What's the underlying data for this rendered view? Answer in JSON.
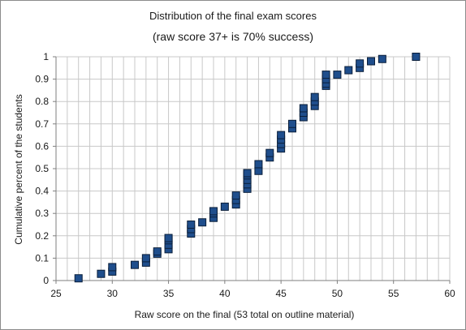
{
  "chart_data": {
    "type": "scatter",
    "title": "Distribution of the final exam scores",
    "subtitle": "(raw score 37+ is 70% success)",
    "xlabel": "Raw score on the final (53 total on outline material)",
    "ylabel": "Cumulative percent of the students",
    "xlim": [
      25,
      60
    ],
    "ylim": [
      0,
      1
    ],
    "xticks": [
      25,
      30,
      35,
      40,
      45,
      50,
      55,
      60
    ],
    "yticks": [
      0,
      0.1,
      0.2,
      0.3,
      0.4,
      0.5,
      0.6,
      0.7,
      0.8,
      0.9,
      1
    ],
    "grid": true,
    "legend": "none",
    "marker_color": "#1f4e8c",
    "marker_edge": "#0b1f3a",
    "grid_color": "#c8c8c8",
    "points": [
      {
        "x": 27,
        "y": 0.01
      },
      {
        "x": 29,
        "y": 0.03
      },
      {
        "x": 30,
        "y": 0.04
      },
      {
        "x": 30,
        "y": 0.06
      },
      {
        "x": 32,
        "y": 0.07
      },
      {
        "x": 33,
        "y": 0.08
      },
      {
        "x": 33,
        "y": 0.1
      },
      {
        "x": 34,
        "y": 0.12
      },
      {
        "x": 34,
        "y": 0.13
      },
      {
        "x": 35,
        "y": 0.14
      },
      {
        "x": 35,
        "y": 0.16
      },
      {
        "x": 35,
        "y": 0.18
      },
      {
        "x": 35,
        "y": 0.19
      },
      {
        "x": 37,
        "y": 0.21
      },
      {
        "x": 37,
        "y": 0.23
      },
      {
        "x": 37,
        "y": 0.25
      },
      {
        "x": 38,
        "y": 0.26
      },
      {
        "x": 39,
        "y": 0.28
      },
      {
        "x": 39,
        "y": 0.3
      },
      {
        "x": 39,
        "y": 0.31
      },
      {
        "x": 40,
        "y": 0.33
      },
      {
        "x": 41,
        "y": 0.34
      },
      {
        "x": 41,
        "y": 0.36
      },
      {
        "x": 41,
        "y": 0.38
      },
      {
        "x": 42,
        "y": 0.41
      },
      {
        "x": 42,
        "y": 0.43
      },
      {
        "x": 42,
        "y": 0.45
      },
      {
        "x": 42,
        "y": 0.47
      },
      {
        "x": 42,
        "y": 0.48
      },
      {
        "x": 43,
        "y": 0.49
      },
      {
        "x": 43,
        "y": 0.52
      },
      {
        "x": 44,
        "y": 0.55
      },
      {
        "x": 44,
        "y": 0.57
      },
      {
        "x": 45,
        "y": 0.59
      },
      {
        "x": 45,
        "y": 0.61
      },
      {
        "x": 45,
        "y": 0.63
      },
      {
        "x": 45,
        "y": 0.65
      },
      {
        "x": 46,
        "y": 0.68
      },
      {
        "x": 46,
        "y": 0.7
      },
      {
        "x": 47,
        "y": 0.73
      },
      {
        "x": 47,
        "y": 0.75
      },
      {
        "x": 47,
        "y": 0.77
      },
      {
        "x": 48,
        "y": 0.78
      },
      {
        "x": 48,
        "y": 0.8
      },
      {
        "x": 48,
        "y": 0.82
      },
      {
        "x": 49,
        "y": 0.87
      },
      {
        "x": 49,
        "y": 0.88
      },
      {
        "x": 49,
        "y": 0.9
      },
      {
        "x": 49,
        "y": 0.92
      },
      {
        "x": 50,
        "y": 0.92
      },
      {
        "x": 51,
        "y": 0.94
      },
      {
        "x": 52,
        "y": 0.95
      },
      {
        "x": 52,
        "y": 0.97
      },
      {
        "x": 53,
        "y": 0.98
      },
      {
        "x": 54,
        "y": 0.99
      },
      {
        "x": 57,
        "y": 1.0
      }
    ]
  }
}
